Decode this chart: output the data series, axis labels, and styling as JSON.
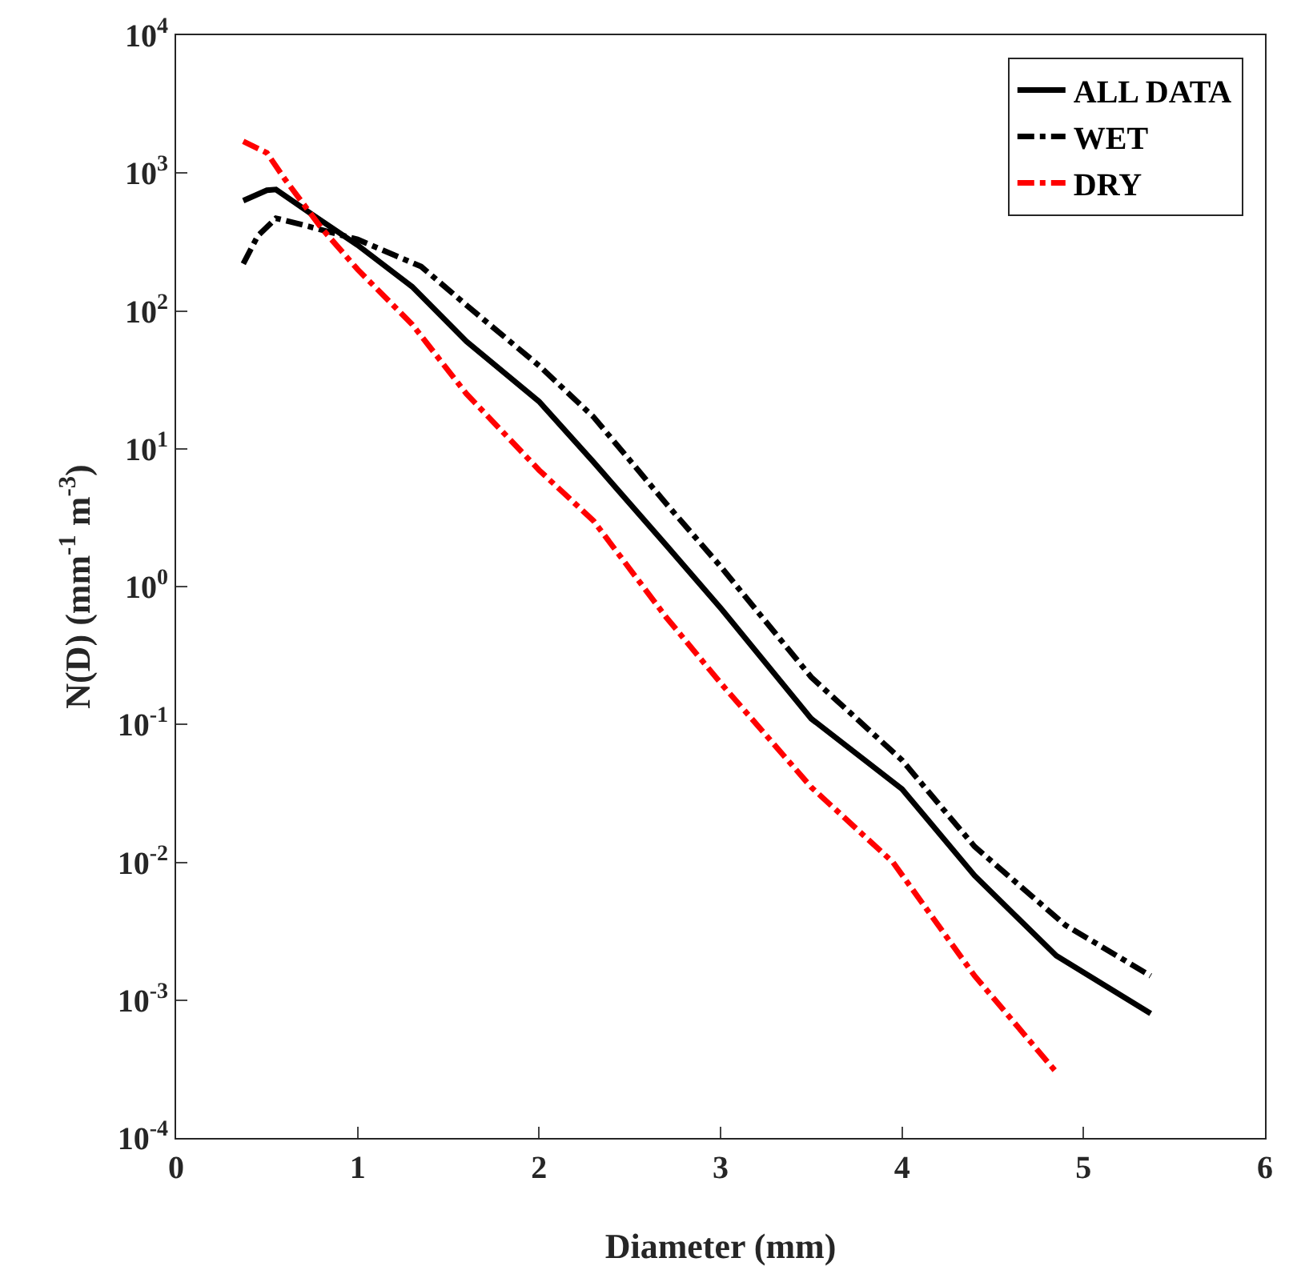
{
  "chart_data": {
    "type": "line",
    "xlabel": "Diameter (mm)",
    "ylabel": "N(D) (mm$^{-1}$ m$^{-3}$)",
    "log": "y",
    "grid": false,
    "legend": "top right",
    "marker": "none",
    "xlim": [
      0,
      6
    ],
    "xticks": [
      0,
      1,
      2,
      3,
      4,
      5,
      6
    ],
    "ylim": [
      0.0001,
      10000
    ],
    "yticks": [
      {
        "value": 0.0001,
        "label": "10$^{-4}$"
      },
      {
        "value": 0.001,
        "label": "10$^{-3}$"
      },
      {
        "value": 0.01,
        "label": "10$^{-2}$"
      },
      {
        "value": 0.1,
        "label": "10$^{-1}$"
      },
      {
        "value": 1,
        "label": "10$^{0}$"
      },
      {
        "value": 10,
        "label": "10$^{1}$"
      },
      {
        "value": 100,
        "label": "10$^{2}$"
      },
      {
        "value": 1000,
        "label": "10$^{3}$"
      },
      {
        "value": 10000,
        "label": "10$^{4}$"
      }
    ],
    "series": [
      {
        "name": "ALL DATA",
        "color": "#000000",
        "line_style": "solid",
        "x": [
          0.37,
          0.5,
          0.55,
          0.75,
          1.0,
          1.3,
          1.6,
          2.0,
          2.3,
          2.7,
          3.0,
          3.5,
          4.0,
          4.4,
          4.85,
          5.37
        ],
        "values": [
          630,
          750,
          760,
          500,
          300,
          150,
          60,
          22,
          8,
          2,
          0.7,
          0.11,
          0.034,
          0.008,
          0.0021,
          0.0008
        ]
      },
      {
        "name": "WET",
        "color": "#000000",
        "line_style": "dashdot",
        "x": [
          0.37,
          0.45,
          0.55,
          0.7,
          1.0,
          1.35,
          1.6,
          2.0,
          2.3,
          2.7,
          3.0,
          3.5,
          4.0,
          4.4,
          4.9,
          5.37
        ],
        "values": [
          220,
          350,
          470,
          420,
          330,
          210,
          110,
          40,
          17,
          4,
          1.4,
          0.22,
          0.055,
          0.013,
          0.0035,
          0.0015
        ]
      },
      {
        "name": "DRY",
        "color": "#ff0000",
        "line_style": "dashdot",
        "x": [
          0.37,
          0.5,
          0.6,
          0.8,
          1.0,
          1.3,
          1.6,
          2.0,
          2.3,
          2.7,
          3.0,
          3.5,
          3.95,
          4.4,
          4.85
        ],
        "values": [
          1700,
          1400,
          900,
          400,
          200,
          80,
          25,
          7,
          3,
          0.6,
          0.2,
          0.035,
          0.01,
          0.0015,
          0.0003
        ]
      }
    ]
  }
}
